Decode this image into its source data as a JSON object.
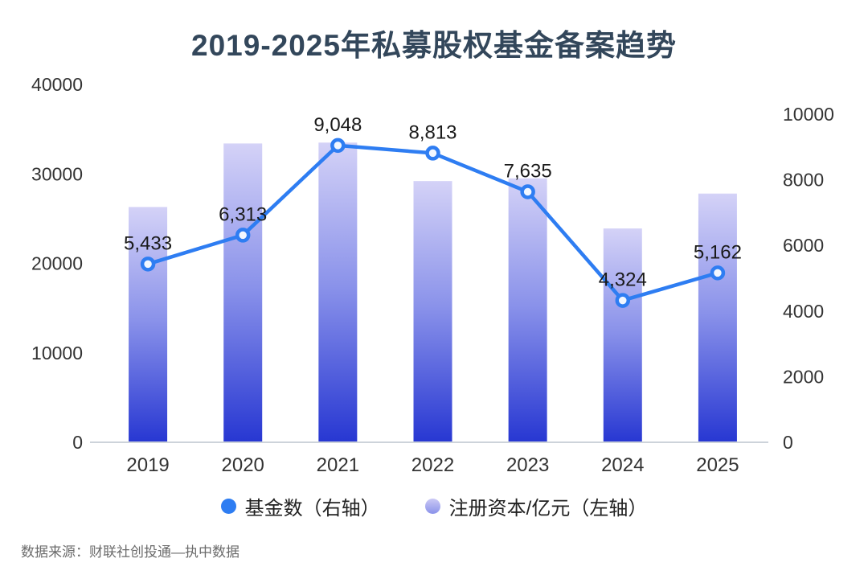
{
  "title": "2019-2025年私募股权基金备案趋势",
  "source": "数据来源：财联社创投通—执中数据",
  "legend": [
    {
      "label": "基金数（右轴）",
      "color": "#2e7df2"
    },
    {
      "label": "注册资本/亿元（左轴）",
      "color": "#8a92ea"
    }
  ],
  "chart_data": {
    "type": "combo",
    "title": "2019-2025年私募股权基金备案趋势",
    "categories": [
      "2019",
      "2020",
      "2021",
      "2022",
      "2023",
      "2024",
      "2025"
    ],
    "series": [
      {
        "name": "基金数（右轴）",
        "type": "line",
        "axis": "right",
        "values": [
          5433,
          6313,
          9048,
          8813,
          7635,
          4324,
          5162
        ],
        "labels": [
          "5,433",
          "6,313",
          "9,048",
          "8,813",
          "7,635",
          "4,324",
          "5,162"
        ]
      },
      {
        "name": "注册资本/亿元（左轴）",
        "type": "bar",
        "axis": "left",
        "values": [
          26300,
          33400,
          33500,
          29200,
          29500,
          23900,
          27800
        ]
      }
    ],
    "left_axis": {
      "min": 0,
      "max": 40000,
      "ticks": [
        0,
        10000,
        20000,
        30000,
        40000
      ]
    },
    "right_axis": {
      "min": 0,
      "max": 10000,
      "ticks": [
        0,
        2000,
        4000,
        6000,
        8000,
        10000
      ]
    },
    "grid": false,
    "legend_position": "bottom",
    "colors": {
      "line": "#2e7df2",
      "marker_fill": "#f2f7ff",
      "bar_top": "#d4d2f7",
      "bar_mid": "#8a92ea",
      "bar_bottom": "#2737d2",
      "axis_text": "#333333",
      "point_label": "#1a1a1a"
    }
  }
}
